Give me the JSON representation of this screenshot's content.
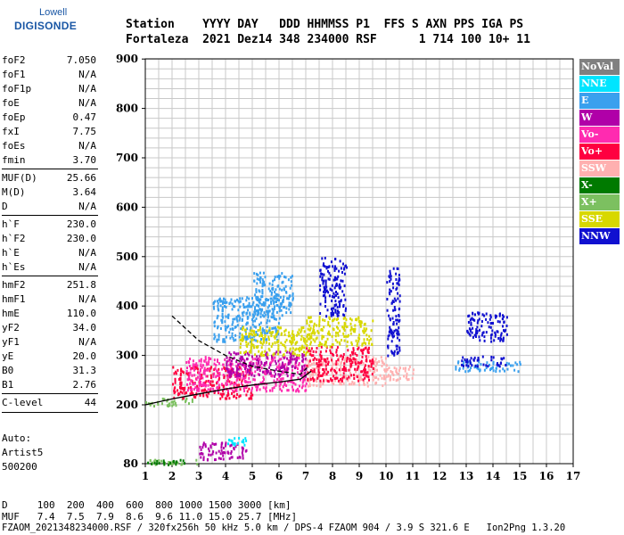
{
  "logo": {
    "line1": "Lowell",
    "line2": "DIGISONDE"
  },
  "header": {
    "labels": "Station    YYYY DAY   DDD HHMMSS P1  FFS S AXN PPS IGA PS",
    "values": "Fortaleza  2021 Dez14 348 234000 RSF      1 714 100 10+ 11"
  },
  "params": [
    {
      "label": "foF2",
      "value": "7.050"
    },
    {
      "label": "foF1",
      "value": "N/A"
    },
    {
      "label": "foF1p",
      "value": "N/A"
    },
    {
      "label": "foE",
      "value": "N/A"
    },
    {
      "label": "foEp",
      "value": "0.47"
    },
    {
      "label": "fxI",
      "value": "7.75"
    },
    {
      "label": "foEs",
      "value": "N/A"
    },
    {
      "label": "fmin",
      "value": "3.70"
    },
    {
      "label": "MUF(D)",
      "value": "25.66"
    },
    {
      "label": "M(D)",
      "value": "3.64"
    },
    {
      "label": "D",
      "value": "N/A"
    },
    {
      "label": "h`F",
      "value": "230.0"
    },
    {
      "label": "h`F2",
      "value": "230.0"
    },
    {
      "label": "h`E",
      "value": "N/A"
    },
    {
      "label": "h`Es",
      "value": "N/A"
    },
    {
      "label": "hmF2",
      "value": "251.8"
    },
    {
      "label": "hmF1",
      "value": "N/A"
    },
    {
      "label": "hmE",
      "value": "110.0"
    },
    {
      "label": "yF2",
      "value": "34.0"
    },
    {
      "label": "yF1",
      "value": "N/A"
    },
    {
      "label": "yE",
      "value": "20.0"
    },
    {
      "label": "B0",
      "value": "31.3"
    },
    {
      "label": "B1",
      "value": "2.76"
    },
    {
      "label": "C-level",
      "value": "44"
    }
  ],
  "notes": {
    "auto": "Auto:",
    "artist": "Artist5",
    "code": "500200"
  },
  "footer": {
    "d_row": "D     100  200  400  600  800 1000 1500 3000 [km]",
    "muf_row": "MUF   7.4  7.5  7.9  8.6  9.6 11.0 15.0 25.7 [MHz]",
    "file_row": "FZAOM_2021348234000.RSF / 320fx256h 50 kHz 5.0 km / DPS-4 FZAOM 904 / 3.9 S 321.6 E   Ion2Png 1.3.20"
  },
  "legend": [
    {
      "label": "NoVal",
      "color": "#808080"
    },
    {
      "label": "NNE",
      "color": "#00e5ff"
    },
    {
      "label": "E",
      "color": "#3aa0ee"
    },
    {
      "label": "W",
      "color": "#b000a8"
    },
    {
      "label": "Vo-",
      "color": "#ff2bb0"
    },
    {
      "label": "Vo+",
      "color": "#ff0040"
    },
    {
      "label": "SSW",
      "color": "#ffb0b0"
    },
    {
      "label": "X-",
      "color": "#007a00"
    },
    {
      "label": "X+",
      "color": "#7cc060"
    },
    {
      "label": "SSE",
      "color": "#d8d800"
    },
    {
      "label": "NNW",
      "color": "#1010d0"
    }
  ],
  "chart_data": {
    "type": "scatter",
    "xlim": [
      1,
      17
    ],
    "ylim": [
      80,
      900
    ],
    "x_ticks": [
      1,
      2,
      3,
      4,
      5,
      6,
      7,
      8,
      9,
      10,
      11,
      12,
      13,
      14,
      15,
      16,
      17
    ],
    "y_ticks": [
      80,
      200,
      300,
      400,
      500,
      600,
      700,
      800,
      900
    ],
    "grid": true,
    "legend_position": "right",
    "clusters": [
      {
        "series": "X+",
        "x": [
          1.0,
          3.0
        ],
        "y": [
          80,
          90
        ]
      },
      {
        "series": "X-",
        "x": [
          1.0,
          2.5
        ],
        "y": [
          80,
          90
        ]
      },
      {
        "series": "W",
        "x": [
          3.0,
          4.8
        ],
        "y": [
          90,
          125
        ]
      },
      {
        "series": "NNE",
        "x": [
          4.0,
          4.8
        ],
        "y": [
          120,
          135
        ]
      },
      {
        "series": "X+",
        "x": [
          1.0,
          2.8
        ],
        "y": [
          200,
          215
        ]
      },
      {
        "series": "Vo+",
        "x": [
          2.0,
          5.0
        ],
        "y": [
          215,
          280
        ]
      },
      {
        "series": "Vo-",
        "x": [
          2.5,
          7.0
        ],
        "y": [
          230,
          300
        ]
      },
      {
        "series": "W",
        "x": [
          4.0,
          7.0
        ],
        "y": [
          260,
          310
        ]
      },
      {
        "series": "E",
        "x": [
          3.5,
          6.0
        ],
        "y": [
          330,
          420
        ]
      },
      {
        "series": "SSE",
        "x": [
          4.5,
          7.2
        ],
        "y": [
          300,
          360
        ]
      },
      {
        "series": "SSW",
        "x": [
          7.0,
          10.0
        ],
        "y": [
          240,
          300
        ]
      },
      {
        "series": "Vo+",
        "x": [
          7.0,
          9.5
        ],
        "y": [
          250,
          320
        ]
      },
      {
        "series": "SSE",
        "x": [
          7.0,
          9.5
        ],
        "y": [
          320,
          380
        ]
      },
      {
        "series": "NNW",
        "x": [
          7.5,
          8.5
        ],
        "y": [
          380,
          500
        ]
      },
      {
        "series": "SSW",
        "x": [
          10.0,
          11.0
        ],
        "y": [
          250,
          280
        ]
      },
      {
        "series": "NNW",
        "x": [
          10.0,
          10.5
        ],
        "y": [
          300,
          480
        ]
      },
      {
        "series": "E",
        "x": [
          12.5,
          15.0
        ],
        "y": [
          270,
          290
        ]
      },
      {
        "series": "NNW",
        "x": [
          12.8,
          14.5
        ],
        "y": [
          280,
          300
        ]
      },
      {
        "series": "NNW",
        "x": [
          13.0,
          14.5
        ],
        "y": [
          330,
          390
        ]
      },
      {
        "series": "E",
        "x": [
          5.0,
          6.5
        ],
        "y": [
          380,
          470
        ]
      }
    ],
    "traces": [
      {
        "name": "O-trace",
        "x": [
          1.0,
          2,
          3,
          4,
          5,
          6,
          6.8,
          7.2
        ],
        "y": [
          200,
          212,
          222,
          232,
          240,
          246,
          252,
          268
        ]
      },
      {
        "name": "O-upper",
        "x": [
          2.0,
          3,
          4,
          5,
          6,
          6.8,
          7.05
        ],
        "y": [
          380,
          330,
          300,
          278,
          268,
          262,
          275
        ]
      }
    ]
  }
}
